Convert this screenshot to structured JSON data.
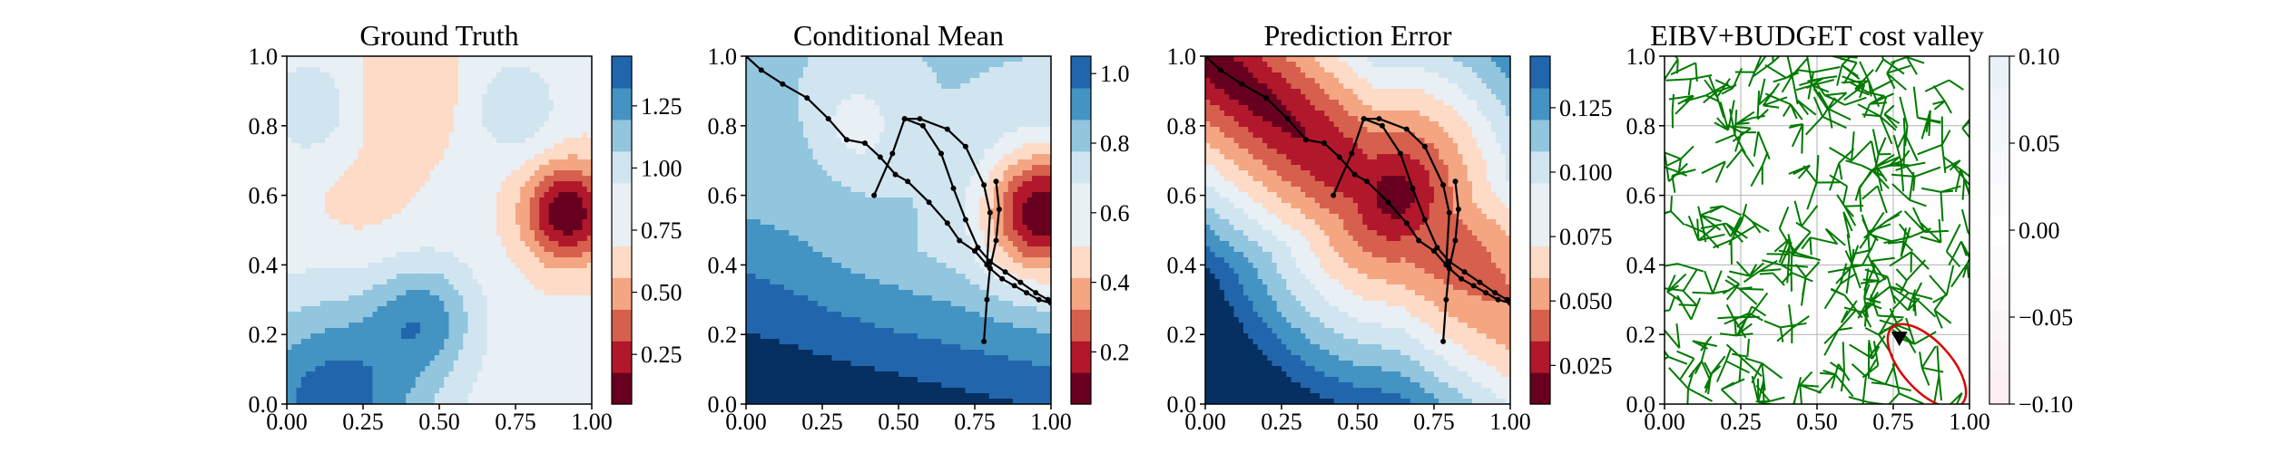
{
  "figure": {
    "panel_titles": [
      "Ground Truth",
      "Conditional Mean",
      "Prediction Error",
      "EIBV+BUDGET cost valley"
    ]
  },
  "chart_data": [
    {
      "type": "heatmap",
      "title": "Ground Truth",
      "xlabel": "",
      "ylabel": "",
      "xlim": [
        0,
        1
      ],
      "ylim": [
        0,
        1
      ],
      "x_ticks": [
        "0.00",
        "0.25",
        "0.50",
        "0.75",
        "1.00"
      ],
      "y_ticks": [
        "0.0",
        "0.2",
        "0.4",
        "0.6",
        "0.8",
        "1.0"
      ],
      "colormap": "RdBu",
      "colorbar": {
        "range": [
          0.05,
          1.45
        ],
        "ticks": [
          "0.25",
          "0.50",
          "0.75",
          "1.00",
          "1.25"
        ],
        "tick_values": [
          0.25,
          0.5,
          0.75,
          1.0,
          1.25
        ]
      },
      "features": [
        {
          "kind": "low",
          "x": 0.92,
          "y": 0.55,
          "value": 0.1
        },
        {
          "kind": "high",
          "x": 0.15,
          "y": 0.0,
          "value": 1.45
        },
        {
          "kind": "high",
          "x": 0.45,
          "y": 0.25,
          "value": 1.3
        }
      ],
      "grid": false
    },
    {
      "type": "heatmap",
      "title": "Conditional Mean",
      "xlabel": "",
      "ylabel": "",
      "xlim": [
        0,
        1
      ],
      "ylim": [
        0,
        1
      ],
      "x_ticks": [
        "0.00",
        "0.25",
        "0.50",
        "0.75",
        "1.00"
      ],
      "y_ticks": [
        "0.0",
        "0.2",
        "0.4",
        "0.6",
        "0.8",
        "1.0"
      ],
      "colormap": "RdBu",
      "colorbar": {
        "range": [
          0.05,
          1.05
        ],
        "ticks": [
          "0.2",
          "0.4",
          "0.6",
          "0.8",
          "1.0"
        ],
        "tick_values": [
          0.2,
          0.4,
          0.6,
          0.8,
          1.0
        ]
      },
      "features": [
        {
          "kind": "low",
          "x": 0.97,
          "y": 0.55,
          "value": 0.1
        },
        {
          "kind": "local_low",
          "x": 0.36,
          "y": 0.8,
          "value": 0.65
        }
      ],
      "path": {
        "x": [
          0.0,
          0.05,
          0.12,
          0.2,
          0.27,
          0.33,
          0.39,
          0.44,
          0.49,
          0.53,
          0.6,
          0.66,
          0.7,
          0.75,
          0.8,
          0.84,
          0.88,
          0.92,
          0.96,
          1.0
        ],
        "y": [
          1.0,
          0.96,
          0.92,
          0.88,
          0.82,
          0.76,
          0.75,
          0.71,
          0.66,
          0.64,
          0.58,
          0.52,
          0.47,
          0.44,
          0.39,
          0.36,
          0.34,
          0.32,
          0.3,
          0.29
        ]
      },
      "loops": [
        {
          "x": [
            0.42,
            0.48,
            0.52,
            0.57,
            0.66,
            0.72,
            0.78,
            0.8,
            0.79
          ],
          "y": [
            0.6,
            0.72,
            0.82,
            0.82,
            0.79,
            0.74,
            0.63,
            0.55,
            0.4
          ]
        },
        {
          "x": [
            0.52,
            0.58,
            0.64,
            0.68,
            0.72,
            0.76,
            0.8,
            0.85,
            0.9,
            0.95,
            0.99
          ],
          "y": [
            0.82,
            0.8,
            0.72,
            0.62,
            0.53,
            0.45,
            0.41,
            0.38,
            0.35,
            0.32,
            0.3
          ]
        },
        {
          "x": [
            0.82,
            0.83,
            0.82,
            0.8,
            0.79,
            0.78
          ],
          "y": [
            0.64,
            0.56,
            0.47,
            0.39,
            0.3,
            0.18
          ]
        }
      ],
      "grid": false
    },
    {
      "type": "heatmap",
      "title": "Prediction Error",
      "xlabel": "",
      "ylabel": "",
      "xlim": [
        0,
        1
      ],
      "ylim": [
        0,
        1
      ],
      "x_ticks": [
        "0.00",
        "0.25",
        "0.50",
        "0.75",
        "1.00"
      ],
      "y_ticks": [
        "0.0",
        "0.2",
        "0.4",
        "0.6",
        "0.8",
        "1.0"
      ],
      "colormap": "RdBu",
      "colorbar": {
        "range": [
          0.01,
          0.145
        ],
        "ticks": [
          "0.025",
          "0.050",
          "0.075",
          "0.100",
          "0.125"
        ],
        "tick_values": [
          0.025,
          0.05,
          0.075,
          0.1,
          0.125
        ]
      },
      "features": [
        {
          "kind": "low_band",
          "from": [
            0.0,
            1.0
          ],
          "to": [
            1.0,
            0.3
          ],
          "value": 0.015
        },
        {
          "kind": "high",
          "x": 0.0,
          "y": 0.0,
          "value": 0.145
        }
      ],
      "grid": false
    },
    {
      "type": "scatter",
      "title": "EIBV+BUDGET cost valley",
      "xlabel": "",
      "ylabel": "",
      "xlim": [
        0,
        1
      ],
      "ylim": [
        0,
        1
      ],
      "x_ticks": [
        "0.00",
        "0.25",
        "0.50",
        "0.75",
        "1.00"
      ],
      "y_ticks": [
        "0.0",
        "0.2",
        "0.4",
        "0.6",
        "0.8",
        "1.0"
      ],
      "colormap": "RdBu",
      "colorbar": {
        "range": [
          -0.1,
          0.1
        ],
        "ticks": [
          "0.10",
          "0.05",
          "0.00",
          "−0.05",
          "−0.10"
        ],
        "tick_values": [
          0.1,
          0.05,
          0.0,
          -0.05,
          -0.1
        ]
      },
      "tree_color": "#007a00",
      "budget_ellipse_color": "#dd0000",
      "current_location": {
        "x": 0.77,
        "y": 0.19
      },
      "budget_ellipse": {
        "cx": 0.86,
        "cy": 0.11,
        "rx": 0.17,
        "ry": 0.07,
        "angle_deg": -48
      },
      "grid": true
    }
  ]
}
